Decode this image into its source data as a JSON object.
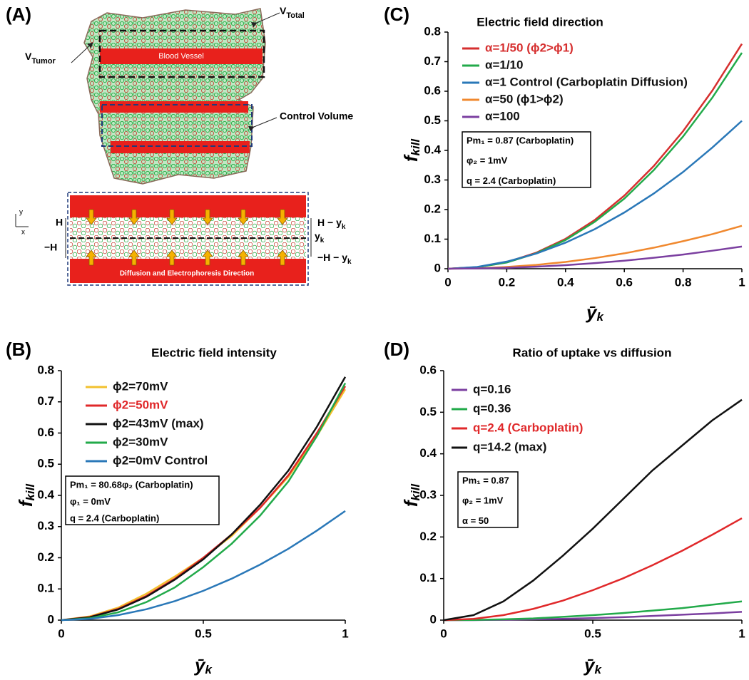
{
  "diagram": {
    "panel": "(A)",
    "v_total": [
      "V",
      "Total"
    ],
    "v_tumor": [
      "V",
      "Tumor"
    ],
    "blood_vessel": "Blood Vessel",
    "control_volume": "Control Volume",
    "direction": "Diffusion and Electrophoresis Direction",
    "axis_y": "y",
    "axis_x": "x",
    "h": "H",
    "minus_h": "−H",
    "h_minus_yk": [
      "H − y",
      "k"
    ],
    "yk": [
      "y",
      "k"
    ],
    "minus_h_minus_yk": [
      "−H − y",
      "k"
    ]
  },
  "chart_data": [
    {
      "type": "line",
      "panel": "(B)",
      "title": "Electric field intensity",
      "xlabel": [
        "ȳ",
        "k"
      ],
      "ylabel": [
        "f",
        "kill"
      ],
      "x": [
        0,
        0.1,
        0.2,
        0.3,
        0.4,
        0.5,
        0.6,
        0.7,
        0.8,
        0.9,
        1
      ],
      "xlim": [
        0,
        1
      ],
      "xticks": [
        0,
        0.5,
        1
      ],
      "ylim": [
        0,
        0.8
      ],
      "yticks": [
        0,
        0.1,
        0.2,
        0.3,
        0.4,
        0.5,
        0.6,
        0.7,
        0.8
      ],
      "grid": false,
      "series": [
        {
          "name": "ϕ2=70mV",
          "color": "#f2c12e",
          "values": [
            0,
            0.012,
            0.04,
            0.085,
            0.14,
            0.2,
            0.27,
            0.36,
            0.46,
            0.59,
            0.74
          ]
        },
        {
          "name": "ϕ2=50mV",
          "color": "#e0282a",
          "legend_text_color": "#e0282a",
          "values": [
            0,
            0.01,
            0.036,
            0.078,
            0.133,
            0.2,
            0.275,
            0.36,
            0.465,
            0.6,
            0.75
          ]
        },
        {
          "name": "ϕ2=43mV (max)",
          "color": "#111111",
          "values": [
            0,
            0.009,
            0.034,
            0.075,
            0.13,
            0.195,
            0.275,
            0.37,
            0.48,
            0.62,
            0.78
          ]
        },
        {
          "name": "ϕ2=30mV",
          "color": "#22aa4a",
          "values": [
            0,
            0.006,
            0.025,
            0.058,
            0.105,
            0.17,
            0.245,
            0.335,
            0.445,
            0.59,
            0.76
          ]
        },
        {
          "name": "ϕ2=0mV Control",
          "color": "#2a78b8",
          "values": [
            0,
            0.004,
            0.016,
            0.035,
            0.061,
            0.094,
            0.133,
            0.178,
            0.229,
            0.287,
            0.35
          ]
        }
      ],
      "annotations": [
        "Pm₁ = 80.68φ₂ (Carboplatin)",
        "φ₁ = 0mV",
        "q = 2.4 (Carboplatin)"
      ]
    },
    {
      "type": "line",
      "panel": "(C)",
      "title": "Electric field direction",
      "xlabel": [
        "ȳ",
        "k"
      ],
      "ylabel": [
        "f",
        "kill"
      ],
      "x": [
        0,
        0.1,
        0.2,
        0.3,
        0.4,
        0.5,
        0.6,
        0.7,
        0.8,
        0.9,
        1
      ],
      "xlim": [
        0,
        1
      ],
      "xticks": [
        0,
        0.2,
        0.4,
        0.6,
        0.8,
        1
      ],
      "ylim": [
        0,
        0.8
      ],
      "yticks": [
        0,
        0.1,
        0.2,
        0.3,
        0.4,
        0.5,
        0.6,
        0.7,
        0.8
      ],
      "grid": false,
      "series": [
        {
          "name": "α=1/50 (ϕ2>ϕ1)",
          "color": "#d62f2f",
          "legend_text_color": "#d62f2f",
          "values": [
            0,
            0.005,
            0.022,
            0.054,
            0.101,
            0.165,
            0.247,
            0.347,
            0.465,
            0.603,
            0.76
          ]
        },
        {
          "name": "α=1/10",
          "color": "#22aa4a",
          "values": [
            0,
            0.005,
            0.021,
            0.052,
            0.097,
            0.159,
            0.237,
            0.333,
            0.447,
            0.579,
            0.73
          ]
        },
        {
          "name": "α=1 Control (Carboplatin Diffusion)",
          "color": "#2a78b8",
          "values": [
            0,
            0.006,
            0.024,
            0.051,
            0.088,
            0.134,
            0.19,
            0.254,
            0.327,
            0.41,
            0.5
          ]
        },
        {
          "name": "α=50 (ϕ1>ϕ2)",
          "color": "#f0882e",
          "values": [
            0,
            0.001,
            0.006,
            0.013,
            0.023,
            0.036,
            0.052,
            0.071,
            0.093,
            0.117,
            0.145
          ]
        },
        {
          "name": "α=100",
          "color": "#7b3fa0",
          "values": [
            0,
            0.001,
            0.003,
            0.007,
            0.012,
            0.019,
            0.027,
            0.037,
            0.048,
            0.061,
            0.075
          ]
        }
      ],
      "annotations": [
        "Pm₁ = 0.87 (Carboplatin)",
        "φ₂ = 1mV",
        "q = 2.4 (Carboplatin)"
      ]
    },
    {
      "type": "line",
      "panel": "(D)",
      "title": "Ratio of uptake vs diffusion",
      "xlabel": [
        "ȳ",
        "k"
      ],
      "ylabel": [
        "f",
        "kill"
      ],
      "x": [
        0,
        0.1,
        0.2,
        0.3,
        0.4,
        0.5,
        0.6,
        0.7,
        0.8,
        0.9,
        1
      ],
      "xlim": [
        0,
        1
      ],
      "xticks": [
        0,
        0.5,
        1
      ],
      "ylim": [
        0,
        0.6
      ],
      "yticks": [
        0,
        0.1,
        0.2,
        0.3,
        0.4,
        0.5,
        0.6
      ],
      "grid": false,
      "series": [
        {
          "name": "q=0.16",
          "color": "#7b3fa0",
          "values": [
            0,
            0,
            0.001,
            0.002,
            0.003,
            0.005,
            0.007,
            0.01,
            0.013,
            0.016,
            0.02
          ]
        },
        {
          "name": "q=0.36",
          "color": "#22aa4a",
          "values": [
            0,
            0.0005,
            0.002,
            0.004,
            0.008,
            0.012,
            0.017,
            0.023,
            0.029,
            0.037,
            0.045
          ]
        },
        {
          "name": "q=2.4 (Carboplatin)",
          "color": "#e0282a",
          "legend_text_color": "#e0282a",
          "values": [
            0,
            0.003,
            0.012,
            0.027,
            0.047,
            0.072,
            0.1,
            0.132,
            0.167,
            0.205,
            0.245
          ]
        },
        {
          "name": "q=14.2 (max)",
          "color": "#111111",
          "values": [
            0,
            0.012,
            0.045,
            0.095,
            0.155,
            0.22,
            0.29,
            0.36,
            0.42,
            0.48,
            0.53
          ]
        }
      ],
      "annotations": [
        "Pm₁ = 0.87",
        "φ₂ = 1mV",
        "α = 50"
      ]
    }
  ]
}
